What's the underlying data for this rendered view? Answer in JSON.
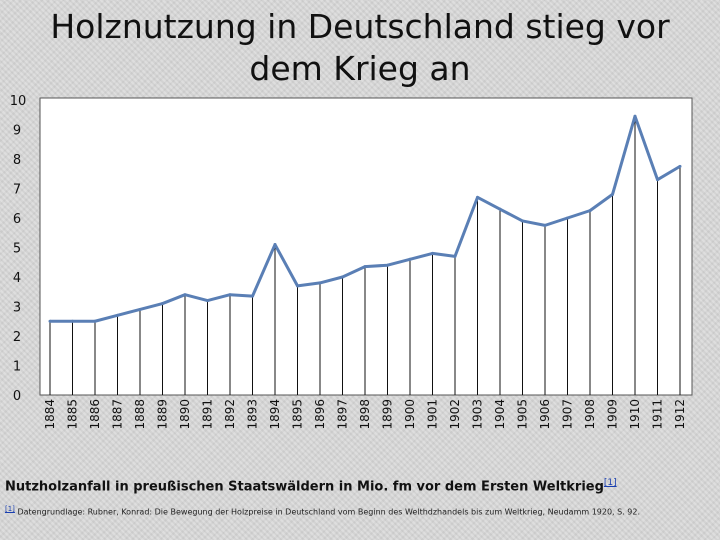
{
  "title": "Holznutzung in Deutschland stieg vor dem Krieg an",
  "caption": {
    "text": "Nutzholzanfall in preußischen Staatswäldern in Mio. fm vor dem Ersten Weltkrieg",
    "ref": "[1]"
  },
  "footnote": {
    "ref": "[1]",
    "text": "Datengrundlage: Rubner, Konrad: Die Bewegung der Holzpreise in Deutschland vom Beginn des Welthdzhandels bis zum Weltkrieg, Neudamm 1920, S. 92."
  },
  "chart_data": {
    "type": "line",
    "categories": [
      "1884",
      "1885",
      "1886",
      "1887",
      "1888",
      "1889",
      "1890",
      "1891",
      "1892",
      "1893",
      "1894",
      "1895",
      "1896",
      "1897",
      "1898",
      "1899",
      "1900",
      "1901",
      "1902",
      "1903",
      "1904",
      "1905",
      "1906",
      "1907",
      "1908",
      "1909",
      "1910",
      "1911",
      "1912"
    ],
    "values": [
      2.5,
      2.5,
      2.5,
      2.7,
      2.9,
      3.1,
      3.4,
      3.2,
      3.4,
      3.35,
      5.1,
      3.7,
      3.8,
      4.0,
      4.35,
      4.4,
      4.6,
      4.8,
      4.7,
      6.7,
      6.3,
      5.9,
      5.75,
      6.0,
      6.25,
      6.8,
      9.45,
      7.3,
      7.75
    ],
    "ylim": [
      0,
      10
    ],
    "yticks": [
      "0",
      "1",
      "2",
      "3",
      "4",
      "5",
      "6",
      "7",
      "8",
      "9",
      "10"
    ],
    "grid": false,
    "drop_lines": true,
    "line_color": "#5a7fb5",
    "xlabel": "",
    "ylabel": ""
  }
}
